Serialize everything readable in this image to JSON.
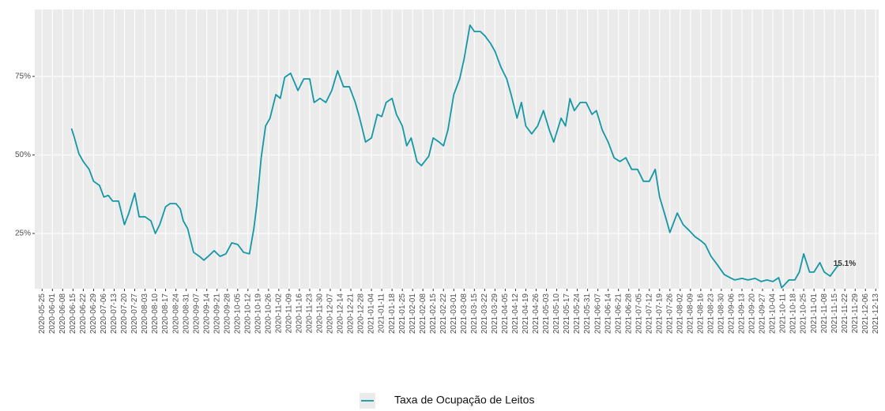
{
  "chart_data": {
    "type": "line",
    "x": [
      "2020-06-14",
      "2020-06-16",
      "2020-06-19",
      "2020-06-22",
      "2020-06-26",
      "2020-06-29",
      "2020-07-03",
      "2020-07-06",
      "2020-07-09",
      "2020-07-12",
      "2020-07-16",
      "2020-07-20",
      "2020-07-23",
      "2020-07-27",
      "2020-07-30",
      "2020-08-03",
      "2020-08-07",
      "2020-08-10",
      "2020-08-13",
      "2020-08-17",
      "2020-08-20",
      "2020-08-24",
      "2020-08-27",
      "2020-08-29",
      "2020-09-01",
      "2020-09-05",
      "2020-09-09",
      "2020-09-12",
      "2020-09-15",
      "2020-09-19",
      "2020-09-23",
      "2020-09-27",
      "2020-10-01",
      "2020-10-05",
      "2020-10-09",
      "2020-10-13",
      "2020-10-16",
      "2020-10-18",
      "2020-10-21",
      "2020-10-24",
      "2020-10-27",
      "2020-10-31",
      "2020-11-03",
      "2020-11-06",
      "2020-11-10",
      "2020-11-15",
      "2020-11-19",
      "2020-11-23",
      "2020-11-26",
      "2020-11-30",
      "2020-12-04",
      "2020-12-08",
      "2020-12-12",
      "2020-12-16",
      "2020-12-20",
      "2020-12-24",
      "2020-12-27",
      "2020-12-31",
      "2021-01-04",
      "2021-01-08",
      "2021-01-11",
      "2021-01-14",
      "2021-01-18",
      "2021-01-21",
      "2021-01-25",
      "2021-01-28",
      "2021-01-31",
      "2021-02-04",
      "2021-02-07",
      "2021-02-12",
      "2021-02-15",
      "2021-02-19",
      "2021-02-22",
      "2021-02-25",
      "2021-03-01",
      "2021-03-05",
      "2021-03-08",
      "2021-03-12",
      "2021-03-15",
      "2021-03-19",
      "2021-03-22",
      "2021-03-26",
      "2021-03-29",
      "2021-04-02",
      "2021-04-06",
      "2021-04-09",
      "2021-04-13",
      "2021-04-16",
      "2021-04-19",
      "2021-04-23",
      "2021-04-27",
      "2021-05-01",
      "2021-05-05",
      "2021-05-08",
      "2021-05-13",
      "2021-05-16",
      "2021-05-19",
      "2021-05-22",
      "2021-05-26",
      "2021-05-30",
      "2021-06-03",
      "2021-06-06",
      "2021-06-10",
      "2021-06-14",
      "2021-06-18",
      "2021-06-22",
      "2021-06-26",
      "2021-06-30",
      "2021-07-04",
      "2021-07-08",
      "2021-07-12",
      "2021-07-16",
      "2021-07-19",
      "2021-07-23",
      "2021-07-26",
      "2021-07-31",
      "2021-08-04",
      "2021-08-08",
      "2021-08-12",
      "2021-08-16",
      "2021-08-19",
      "2021-08-23",
      "2021-08-27",
      "2021-09-01",
      "2021-09-05",
      "2021-09-08",
      "2021-09-13",
      "2021-09-17",
      "2021-09-22",
      "2021-09-26",
      "2021-09-30",
      "2021-10-04",
      "2021-10-08",
      "2021-10-10",
      "2021-10-15",
      "2021-10-19",
      "2021-10-22",
      "2021-10-25",
      "2021-10-29",
      "2021-11-01",
      "2021-11-05",
      "2021-11-08",
      "2021-11-12",
      "2021-11-16",
      "2021-11-18"
    ],
    "series": [
      {
        "name": "Taxa de Ocupação de Leitos",
        "color": "#1497a6",
        "values": [
          58.4,
          55.4,
          50.4,
          47.9,
          45.4,
          41.6,
          40.3,
          36.6,
          37.1,
          35.3,
          35.3,
          27.8,
          31.5,
          37.8,
          30.3,
          30.3,
          29,
          25,
          27.8,
          33.5,
          34.5,
          34.5,
          32.8,
          29,
          26.5,
          19,
          17.7,
          16.5,
          17.7,
          19.5,
          17.7,
          18.5,
          22,
          21.5,
          19,
          18.5,
          26.5,
          34,
          49.1,
          59.2,
          61.7,
          69.2,
          68,
          74.7,
          76,
          70.5,
          74.2,
          74.2,
          66.7,
          68,
          66.7,
          70.5,
          76.8,
          71.7,
          71.7,
          66.7,
          61.7,
          54.1,
          55.4,
          62.9,
          62.2,
          66.7,
          68,
          62.9,
          59.2,
          52.9,
          55.4,
          47.9,
          46.6,
          49.6,
          55.4,
          54.1,
          52.9,
          57.9,
          69.2,
          74.2,
          80.5,
          91.3,
          89.3,
          89.3,
          88,
          85.5,
          83,
          78,
          74.2,
          69.2,
          61.7,
          66.7,
          59.2,
          56.7,
          59.2,
          64.1,
          57.9,
          54.1,
          61.7,
          59.2,
          67.9,
          64.1,
          66.7,
          66.7,
          62.9,
          64.1,
          57.9,
          54.1,
          49.1,
          47.9,
          49.1,
          45.4,
          45.4,
          41.6,
          41.6,
          45.4,
          36.6,
          30.3,
          25.3,
          31.5,
          27.8,
          26,
          24,
          22.7,
          21.5,
          17.7,
          15.2,
          11.9,
          10.9,
          10.2,
          10.7,
          10.2,
          10.7,
          9.7,
          10.2,
          9.7,
          10.9,
          7.7,
          10.2,
          10.2,
          12.7,
          18.5,
          12.7,
          12.7,
          15.7,
          12.7,
          11.4,
          14,
          15.1
        ]
      }
    ],
    "annotations": [
      {
        "text": "15.1%",
        "x": "2021-11-18",
        "y": 15.1
      }
    ],
    "xlim": [
      "2020-05-20",
      "2021-12-15"
    ],
    "xticks": [
      "2020-05-25",
      "2020-06-01",
      "2020-06-08",
      "2020-06-15",
      "2020-06-22",
      "2020-06-29",
      "2020-07-06",
      "2020-07-13",
      "2020-07-20",
      "2020-07-27",
      "2020-08-03",
      "2020-08-10",
      "2020-08-17",
      "2020-08-24",
      "2020-08-31",
      "2020-09-07",
      "2020-09-14",
      "2020-09-21",
      "2020-09-28",
      "2020-10-05",
      "2020-10-12",
      "2020-10-19",
      "2020-10-26",
      "2020-11-02",
      "2020-11-09",
      "2020-11-16",
      "2020-11-23",
      "2020-11-30",
      "2020-12-07",
      "2020-12-14",
      "2020-12-21",
      "2020-12-28",
      "2021-01-04",
      "2021-01-11",
      "2021-01-18",
      "2021-01-25",
      "2021-02-01",
      "2021-02-08",
      "2021-02-15",
      "2021-02-22",
      "2021-03-01",
      "2021-03-08",
      "2021-03-15",
      "2021-03-22",
      "2021-03-29",
      "2021-04-05",
      "2021-04-12",
      "2021-04-19",
      "2021-04-26",
      "2021-05-03",
      "2021-05-10",
      "2021-05-17",
      "2021-05-24",
      "2021-05-31",
      "2021-06-07",
      "2021-06-14",
      "2021-06-21",
      "2021-06-28",
      "2021-07-05",
      "2021-07-12",
      "2021-07-19",
      "2021-07-26",
      "2021-08-02",
      "2021-08-09",
      "2021-08-16",
      "2021-08-23",
      "2021-08-30",
      "2021-09-06",
      "2021-09-13",
      "2021-09-20",
      "2021-09-27",
      "2021-10-04",
      "2021-10-11",
      "2021-10-18",
      "2021-10-25",
      "2021-11-01",
      "2021-11-08",
      "2021-11-15",
      "2021-11-22",
      "2021-11-29",
      "2021-12-06",
      "2021-12-13"
    ],
    "ylim": [
      7.4,
      96.3
    ],
    "yticks": [
      {
        "value": 25,
        "label": "25%"
      },
      {
        "value": 50,
        "label": "50%"
      },
      {
        "value": 75,
        "label": "75%"
      }
    ],
    "grid": true,
    "legend": "bottom"
  }
}
